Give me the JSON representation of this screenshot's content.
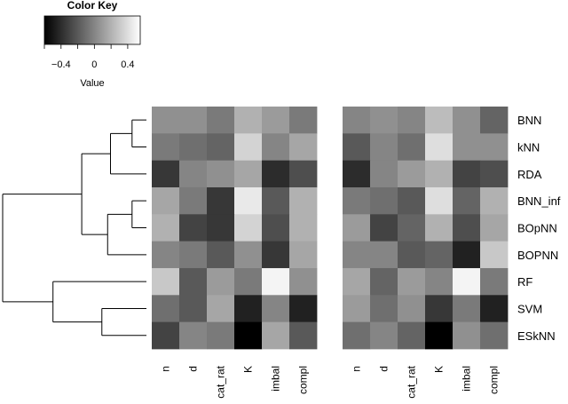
{
  "chart_data": {
    "type": "heatmap",
    "color_key": {
      "title": "Color Key",
      "label": "Value",
      "ticks": [
        -0.4,
        0,
        0.4
      ],
      "tick_labels": [
        "−0.4",
        "0",
        "0.4"
      ],
      "range": [
        -0.6,
        0.55
      ],
      "low_color": "#000000",
      "high_color": "#ffffff"
    },
    "columns": [
      "n",
      "d",
      "cat_rat",
      "K",
      "imbal",
      "compl"
    ],
    "rows": [
      "BNN",
      "kNN",
      "RDA",
      "BNN_inf",
      "BOpNN",
      "BOPNN",
      "RF",
      "SVM",
      "ESkNN"
    ],
    "dendrogram": {
      "leaf_order": [
        "BNN",
        "kNN",
        "RDA",
        "BNN_inf",
        "BOpNN",
        "BOPNN",
        "RF",
        "SVM",
        "ESkNN"
      ],
      "merges": [
        {
          "id": "c1",
          "children": [
            "BNN",
            "kNN"
          ],
          "height": 0.1
        },
        {
          "id": "c2",
          "children": [
            "BNN_inf",
            "BOpNN"
          ],
          "height": 0.1
        },
        {
          "id": "c3",
          "children": [
            "c2",
            "BOPNN"
          ],
          "height": 0.27
        },
        {
          "id": "c4",
          "children": [
            "c1",
            "RDA"
          ],
          "height": 0.25
        },
        {
          "id": "c5",
          "children": [
            "c4",
            "c3"
          ],
          "height": 0.45
        },
        {
          "id": "c6",
          "children": [
            "SVM",
            "ESkNN"
          ],
          "height": 0.31
        },
        {
          "id": "c7",
          "children": [
            "RF",
            "c6"
          ],
          "height": 0.65
        },
        {
          "id": "c8",
          "children": [
            "c5",
            "c7"
          ],
          "height": 1.0
        }
      ]
    },
    "panels": [
      {
        "values": [
          [
            0.05,
            0.05,
            -0.05,
            0.2,
            0.1,
            -0.05
          ],
          [
            -0.05,
            -0.1,
            -0.15,
            0.35,
            0.0,
            0.15
          ],
          [
            -0.35,
            0.0,
            0.05,
            0.15,
            -0.4,
            -0.25
          ],
          [
            0.15,
            -0.05,
            -0.35,
            0.45,
            -0.2,
            0.2
          ],
          [
            0.2,
            -0.3,
            -0.35,
            0.35,
            -0.25,
            0.2
          ],
          [
            0.0,
            -0.05,
            -0.2,
            0.05,
            -0.35,
            0.15
          ],
          [
            0.3,
            -0.2,
            0.1,
            -0.05,
            0.5,
            0.05
          ],
          [
            -0.1,
            -0.2,
            0.15,
            -0.45,
            0.0,
            -0.45
          ],
          [
            -0.3,
            0.0,
            -0.05,
            -0.6,
            0.15,
            -0.2
          ]
        ]
      },
      {
        "values": [
          [
            0.0,
            0.05,
            0.0,
            0.25,
            0.05,
            -0.15
          ],
          [
            -0.2,
            0.0,
            -0.1,
            0.4,
            0.05,
            0.05
          ],
          [
            -0.4,
            0.0,
            0.1,
            0.2,
            -0.3,
            -0.25
          ],
          [
            -0.05,
            -0.1,
            -0.2,
            0.4,
            -0.15,
            0.2
          ],
          [
            0.1,
            -0.3,
            -0.15,
            0.2,
            -0.25,
            0.15
          ],
          [
            0.0,
            0.0,
            -0.2,
            -0.15,
            -0.45,
            0.3
          ],
          [
            0.15,
            -0.15,
            0.1,
            0.0,
            0.5,
            -0.05
          ],
          [
            0.1,
            -0.1,
            0.05,
            -0.35,
            -0.05,
            -0.45
          ],
          [
            -0.1,
            0.0,
            -0.15,
            -0.6,
            0.05,
            -0.1
          ]
        ]
      }
    ]
  }
}
